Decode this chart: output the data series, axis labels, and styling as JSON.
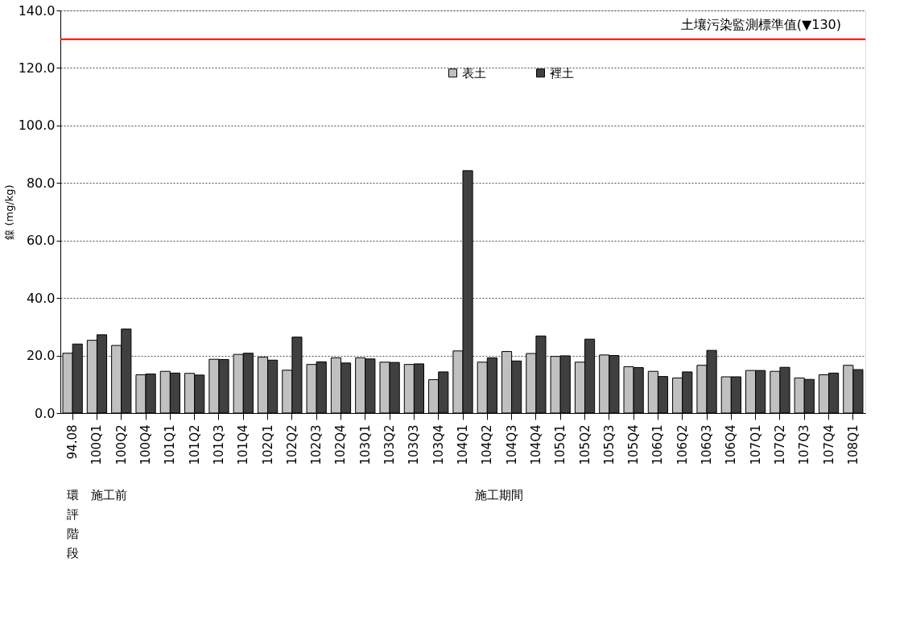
{
  "chart_data": {
    "type": "bar",
    "categories": [
      "94.08",
      "100Q1",
      "100Q2",
      "100Q4",
      "101Q1",
      "101Q2",
      "101Q3",
      "101Q4",
      "102Q1",
      "102Q2",
      "102Q3",
      "102Q4",
      "103Q1",
      "103Q2",
      "103Q3",
      "103Q4",
      "104Q1",
      "104Q2",
      "104Q3",
      "104Q4",
      "105Q1",
      "105Q2",
      "105Q3",
      "105Q4",
      "106Q1",
      "106Q2",
      "106Q3",
      "106Q4",
      "107Q1",
      "107Q2",
      "107Q3",
      "107Q4",
      "108Q1"
    ],
    "series": [
      {
        "name": "表土",
        "color": "#c0c0c0",
        "values": [
          20.8,
          25.3,
          23.5,
          13.3,
          14.5,
          13.8,
          18.7,
          20.4,
          19.4,
          14.9,
          16.9,
          19.2,
          19.2,
          17.7,
          16.9,
          11.6,
          21.6,
          17.7,
          21.4,
          20.7,
          19.7,
          17.7,
          20.2,
          16.1,
          14.5,
          12.2,
          16.6,
          12.6,
          14.8,
          14.5,
          12.2,
          13.3,
          16.6
        ]
      },
      {
        "name": "裡土",
        "color": "#404040",
        "values": [
          24.0,
          27.2,
          29.2,
          13.6,
          13.9,
          13.2,
          18.6,
          20.8,
          18.4,
          26.4,
          17.8,
          17.4,
          18.8,
          17.6,
          17.1,
          14.3,
          84.3,
          19.2,
          18.1,
          26.8,
          19.9,
          25.7,
          20.0,
          15.8,
          12.7,
          14.3,
          21.8,
          12.6,
          14.8,
          15.9,
          11.7,
          13.9,
          15.1
        ]
      }
    ],
    "ylabel": "鎳 (mg/kg)",
    "ylim": [
      0,
      140
    ],
    "yticks": [
      {
        "value": 0,
        "label": "0.0"
      },
      {
        "value": 20,
        "label": "20.0"
      },
      {
        "value": 40,
        "label": "40.0"
      },
      {
        "value": 60,
        "label": "60.0"
      },
      {
        "value": 80,
        "label": "80.0"
      },
      {
        "value": 100,
        "label": "100.0"
      },
      {
        "value": 120,
        "label": "120.0"
      },
      {
        "value": 140,
        "label": "140.0"
      }
    ],
    "grid": "y",
    "legend": "top",
    "ref_lines": [
      {
        "axis": "y",
        "value": 130,
        "label": "土壤污染監測標準值(▼130)",
        "color": "#ff0000",
        "line_style": "solid"
      }
    ],
    "annotations": [
      "環評階段",
      "施工前",
      "施工期間"
    ]
  }
}
